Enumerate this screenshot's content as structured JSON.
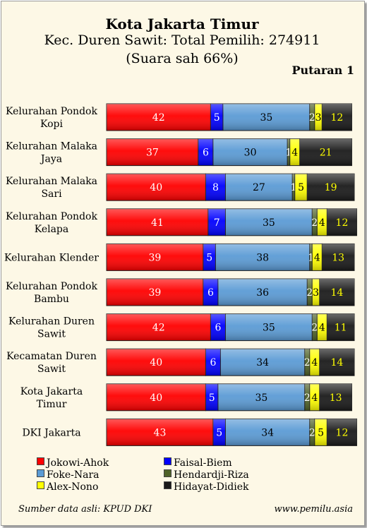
{
  "chart_data": {
    "type": "bar",
    "stacked": true,
    "orientation": "horizontal",
    "title": "Kota Jakarta Timur",
    "subtitle": "Kec. Duren Sawit: Total Pemilih: 274911",
    "subtitle2": "(Suara sah 66%)",
    "annotation": "Putaran 1",
    "categories": [
      "Kelurahan Pondok Kopi",
      "Kelurahan Malaka Jaya",
      "Kelurahan Malaka Sari",
      "Kelurahan Pondok Kelapa",
      "Kelurahan Klender",
      "Kelurahan Pondok Bambu",
      "Kelurahan Duren Sawit",
      "Kecamatan Duren Sawit",
      "Kota Jakarta Timur",
      "DKI Jakarta"
    ],
    "series": [
      {
        "name": "Jokowi-Ahok",
        "color": "#ff0000",
        "values": [
          42,
          37,
          40,
          41,
          39,
          39,
          42,
          40,
          40,
          43
        ]
      },
      {
        "name": "Faisal-Biem",
        "color": "#0000ff",
        "values": [
          5,
          6,
          8,
          7,
          5,
          6,
          6,
          6,
          5,
          5
        ]
      },
      {
        "name": "Foke-Nara",
        "color": "#5b9bd5",
        "values": [
          35,
          30,
          27,
          35,
          38,
          36,
          35,
          34,
          35,
          34
        ]
      },
      {
        "name": "Hendardji-Riza",
        "color": "#4f6228",
        "values": [
          2,
          1,
          1,
          2,
          1,
          2,
          2,
          2,
          2,
          2
        ]
      },
      {
        "name": "Alex-Nono",
        "color": "#ffff00",
        "values": [
          3,
          4,
          5,
          4,
          4,
          3,
          4,
          4,
          4,
          5
        ]
      },
      {
        "name": "Hidayat-Didiek",
        "color": "#1a1a1a",
        "values": [
          12,
          21,
          19,
          12,
          13,
          14,
          11,
          14,
          13,
          12
        ]
      }
    ],
    "xlim": [
      0,
      100
    ],
    "grid": false,
    "legend_position": "bottom"
  },
  "footer": {
    "source": "Sumber data asli: KPUD DKI",
    "site": "www.pemilu.asia"
  }
}
